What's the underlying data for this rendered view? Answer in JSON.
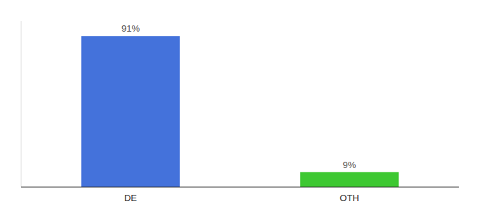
{
  "chart_data": {
    "type": "bar",
    "categories": [
      "DE",
      "OTH"
    ],
    "values": [
      91,
      9
    ],
    "value_labels": [
      "91%",
      "9%"
    ],
    "colors": [
      "#4472db",
      "#3ec832"
    ],
    "ylim": [
      0,
      100
    ],
    "data_labels": true,
    "tick_labels": "x"
  }
}
